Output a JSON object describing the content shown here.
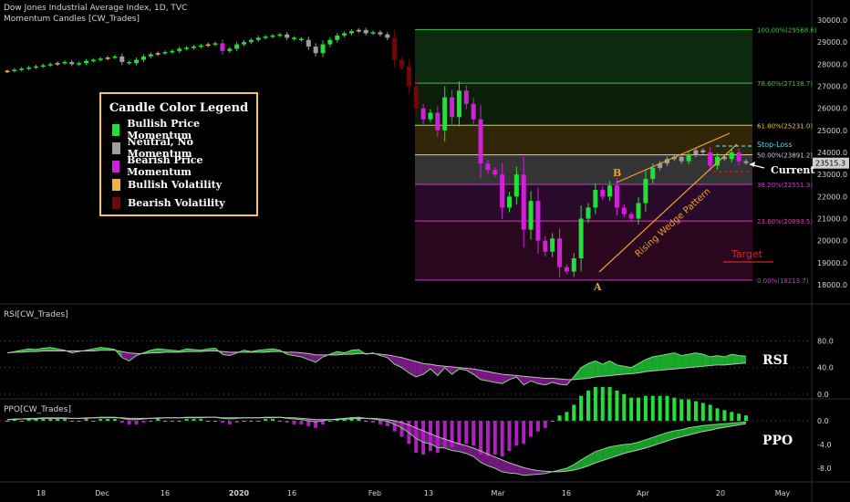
{
  "header": {
    "title": "Dow Jones Industrial Average Index, 1D, TVC",
    "indicator": "Momentum Candles [CW_Trades]",
    "rsi_label": "RSI[CW_Trades]",
    "ppo_label": "PPO[CW_Trades]"
  },
  "legend": {
    "title": "Candle Color Legend",
    "items": [
      {
        "label": "Bullish Price Momentum",
        "color": "#22e03a"
      },
      {
        "label": "Neutral, No Momentum",
        "color": "#9e9e9e"
      },
      {
        "label": "Bearish Price Momentum",
        "color": "#d020d8"
      },
      {
        "label": "Bullish Volatility",
        "color": "#f0b040"
      },
      {
        "label": "Bearish Volatility",
        "color": "#6b0a0a"
      }
    ]
  },
  "colors": {
    "bull": "#22e03a",
    "neutral": "#9e9e9e",
    "bear": "#d020d8",
    "bullvol": "#f0b040",
    "bearvol": "#6b0a0a",
    "orange": "#f0a030",
    "cyan": "#40e0e0",
    "red": "#e02020"
  },
  "chart_data": [
    {
      "type": "candlestick",
      "title": "Dow Jones Industrial Average Index, 1D, TVC",
      "ylim": [
        17500,
        30500
      ],
      "y_ticks": [
        "30000.0",
        "29000.0",
        "28000.0",
        "27000.0",
        "26000.0",
        "25000.0",
        "24000.0",
        "23000.0",
        "22000.0",
        "21000.0",
        "20000.0",
        "19000.0",
        "18000.0"
      ],
      "x_ticks": [
        "18",
        "Dec",
        "16",
        "2020",
        "16",
        "Feb",
        "13",
        "Mar",
        "16",
        "Apr",
        "20",
        "May"
      ],
      "price_tag": "23515.3",
      "fib_levels": [
        {
          "label": "100.00%(29568.6)",
          "value": 29568.6,
          "color": "#3cc83c"
        },
        {
          "label": "78.60%(27138.7)",
          "value": 27138.7,
          "color": "#3cc83c"
        },
        {
          "label": "61.80%(25231.0)",
          "value": 25231.0,
          "color": "#e8c840"
        },
        {
          "label": "50.00%(23891.2)",
          "value": 23891.2,
          "color": "#d0d0d0"
        },
        {
          "label": "38.20%(22551.3)",
          "value": 22551.3,
          "color": "#c040c0"
        },
        {
          "label": "23.60%(20893.5)",
          "value": 20893.5,
          "color": "#d040b0"
        },
        {
          "label": "0.00%(18213.7)",
          "value": 18213.7,
          "color": "#c040c0"
        }
      ],
      "annotations": {
        "point_a": "A",
        "point_b": "B",
        "wedge": "Rising Wedge Pattern",
        "stop_loss": "Stop-Loss",
        "current": "Current",
        "target": "Target"
      },
      "series": [
        {
          "name": "close",
          "values": [
            27700,
            27750,
            27800,
            27850,
            27900,
            27950,
            28000,
            28050,
            28100,
            28000,
            28050,
            28150,
            28200,
            28250,
            28300,
            28350,
            28100,
            28050,
            28200,
            28350,
            28450,
            28500,
            28550,
            28600,
            28700,
            28750,
            28800,
            28850,
            28900,
            28950,
            28600,
            28700,
            28900,
            29000,
            29100,
            29200,
            29250,
            29300,
            29350,
            29200,
            29150,
            29100,
            28800,
            28500,
            28900,
            29100,
            29300,
            29400,
            29500,
            29550,
            29400,
            29450,
            29350,
            29200,
            28200,
            27900,
            27000,
            26000,
            25500,
            25800,
            25000,
            26500,
            25600,
            26800,
            26200,
            25500,
            23500,
            23200,
            23000,
            21500,
            22000,
            23000,
            20500,
            21800,
            20000,
            19500,
            20100,
            18800,
            18600,
            19200,
            21000,
            21500,
            22300,
            22000,
            22500,
            21500,
            21200,
            21000,
            21700,
            22800,
            23300,
            23500,
            23700,
            23800,
            23600,
            23900,
            24100,
            24000,
            23400,
            23800,
            23700,
            24000,
            23600,
            23515
          ]
        }
      ]
    },
    {
      "type": "line",
      "title": "RSI[CW_Trades]",
      "ylabel": "RSI",
      "y_ticks": [
        "80.0",
        "40.0",
        "0.0"
      ],
      "ylim": [
        0,
        100
      ],
      "series": [
        {
          "name": "rsi",
          "values": [
            62,
            64,
            66,
            68,
            67,
            69,
            70,
            68,
            66,
            62,
            64,
            66,
            68,
            70,
            69,
            67,
            55,
            50,
            58,
            62,
            66,
            68,
            67,
            66,
            65,
            68,
            67,
            66,
            68,
            69,
            60,
            58,
            62,
            66,
            64,
            66,
            67,
            68,
            66,
            60,
            58,
            56,
            52,
            48,
            56,
            60,
            64,
            62,
            66,
            67,
            60,
            62,
            58,
            55,
            45,
            40,
            32,
            26,
            30,
            38,
            28,
            40,
            30,
            38,
            36,
            30,
            22,
            20,
            18,
            16,
            22,
            26,
            14,
            20,
            16,
            14,
            18,
            15,
            14,
            26,
            40,
            46,
            50,
            45,
            50,
            44,
            42,
            40,
            46,
            52,
            56,
            58,
            60,
            62,
            58,
            60,
            62,
            60,
            56,
            58,
            56,
            60,
            58,
            57
          ]
        },
        {
          "name": "signal",
          "values": [
            62,
            63,
            63,
            64,
            64,
            65,
            65,
            65,
            65,
            65,
            65,
            65,
            65,
            66,
            66,
            66,
            64,
            62,
            61,
            61,
            62,
            62,
            63,
            63,
            63,
            64,
            64,
            64,
            65,
            65,
            64,
            63,
            63,
            63,
            63,
            63,
            63,
            64,
            64,
            63,
            63,
            62,
            61,
            59,
            59,
            59,
            59,
            60,
            60,
            61,
            61,
            61,
            60,
            59,
            57,
            55,
            52,
            49,
            46,
            45,
            43,
            42,
            41,
            40,
            39,
            38,
            36,
            34,
            32,
            30,
            29,
            28,
            27,
            26,
            25,
            24,
            24,
            23,
            22,
            22,
            23,
            24,
            26,
            27,
            28,
            29,
            30,
            31,
            32,
            34,
            35,
            36,
            37,
            38,
            39,
            40,
            41,
            42,
            43,
            44,
            44,
            45,
            46,
            47
          ]
        }
      ]
    },
    {
      "type": "line",
      "title": "PPO[CW_Trades]",
      "ylabel": "PPO",
      "y_ticks": [
        "0.0",
        "-4.0",
        "-8.0"
      ],
      "ylim": [
        -10,
        2
      ],
      "series": [
        {
          "name": "ppo",
          "values": [
            0.2,
            0.3,
            0.3,
            0.4,
            0.4,
            0.5,
            0.5,
            0.5,
            0.5,
            0.4,
            0.4,
            0.5,
            0.5,
            0.6,
            0.6,
            0.6,
            0.4,
            0.2,
            0.2,
            0.3,
            0.4,
            0.5,
            0.5,
            0.5,
            0.5,
            0.6,
            0.6,
            0.6,
            0.6,
            0.6,
            0.4,
            0.3,
            0.4,
            0.5,
            0.5,
            0.5,
            0.6,
            0.6,
            0.6,
            0.4,
            0.3,
            0.2,
            0.0,
            -0.2,
            0.0,
            0.2,
            0.3,
            0.4,
            0.5,
            0.6,
            0.4,
            0.3,
            0.1,
            -0.1,
            -0.6,
            -1.2,
            -2.0,
            -3.0,
            -3.6,
            -3.9,
            -4.5,
            -4.6,
            -5.0,
            -5.2,
            -5.5,
            -6.0,
            -7.0,
            -7.6,
            -8.0,
            -8.6,
            -8.8,
            -8.9,
            -9.2,
            -9.1,
            -9.0,
            -8.9,
            -8.6,
            -8.3,
            -8.0,
            -7.4,
            -6.6,
            -5.9,
            -5.2,
            -4.8,
            -4.4,
            -4.2,
            -4.0,
            -3.9,
            -3.6,
            -3.2,
            -2.8,
            -2.4,
            -2.0,
            -1.7,
            -1.5,
            -1.2,
            -1.0,
            -0.8,
            -0.7,
            -0.6,
            -0.5,
            -0.4,
            -0.3,
            -0.2
          ]
        },
        {
          "name": "signal",
          "values": [
            0.2,
            0.2,
            0.3,
            0.3,
            0.3,
            0.4,
            0.4,
            0.4,
            0.4,
            0.4,
            0.4,
            0.4,
            0.5,
            0.5,
            0.5,
            0.5,
            0.5,
            0.4,
            0.4,
            0.4,
            0.4,
            0.4,
            0.5,
            0.5,
            0.5,
            0.5,
            0.5,
            0.5,
            0.6,
            0.6,
            0.5,
            0.5,
            0.5,
            0.5,
            0.5,
            0.5,
            0.5,
            0.5,
            0.6,
            0.5,
            0.5,
            0.4,
            0.3,
            0.2,
            0.2,
            0.2,
            0.2,
            0.3,
            0.3,
            0.4,
            0.4,
            0.4,
            0.3,
            0.2,
            0.0,
            -0.3,
            -0.7,
            -1.2,
            -1.7,
            -2.2,
            -2.7,
            -3.1,
            -3.5,
            -3.9,
            -4.2,
            -4.6,
            -5.1,
            -5.6,
            -6.1,
            -6.6,
            -7.1,
            -7.5,
            -7.9,
            -8.2,
            -8.4,
            -8.5,
            -8.6,
            -8.6,
            -8.5,
            -8.3,
            -8.0,
            -7.6,
            -7.1,
            -6.7,
            -6.3,
            -5.9,
            -5.5,
            -5.2,
            -4.9,
            -4.6,
            -4.2,
            -3.8,
            -3.4,
            -3.0,
            -2.7,
            -2.4,
            -2.1,
            -1.8,
            -1.6,
            -1.3,
            -1.1,
            -0.9,
            -0.7,
            -0.5
          ]
        }
      ]
    }
  ]
}
